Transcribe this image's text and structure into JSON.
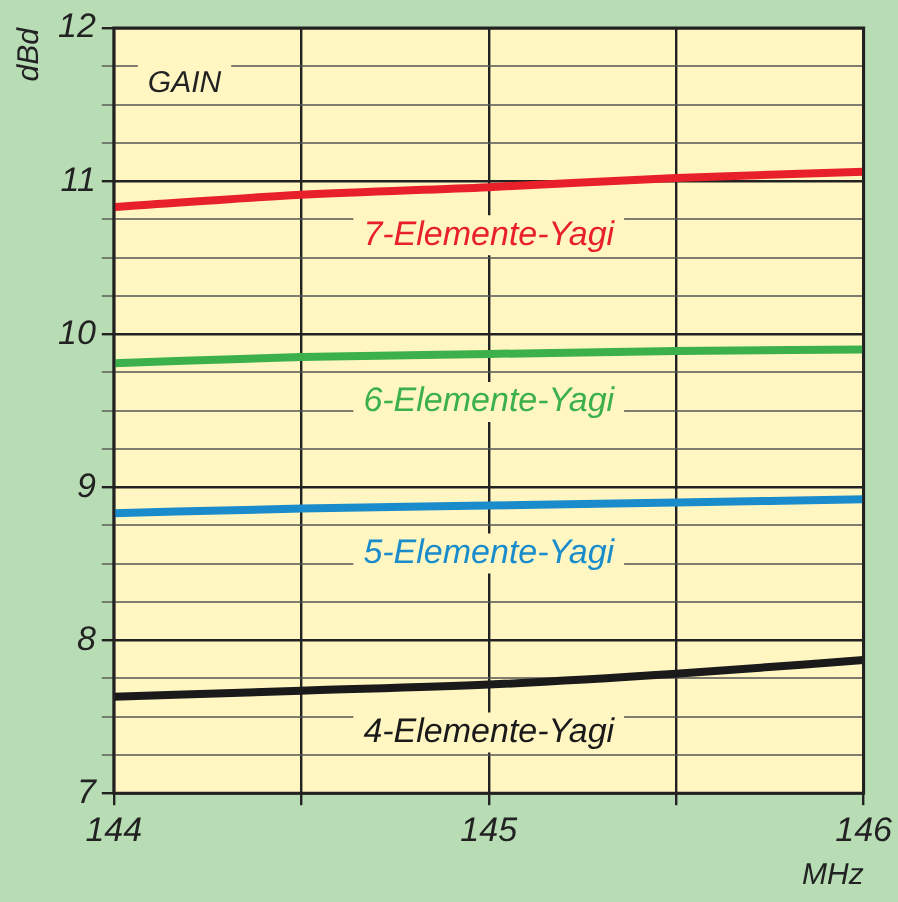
{
  "chart_data": {
    "type": "line",
    "ylabel": "dBd",
    "xlabel": "MHz",
    "annotations": [
      "GAIN"
    ],
    "x": [
      144,
      144.5,
      145,
      145.5,
      146
    ],
    "series": [
      {
        "name": "7-Elemente-Yagi",
        "color": "#e8202a",
        "values": [
          10.83,
          10.91,
          10.96,
          11.02,
          11.06
        ]
      },
      {
        "name": "6-Elemente-Yagi",
        "color": "#3cb04a",
        "values": [
          9.81,
          9.85,
          9.87,
          9.89,
          9.9
        ]
      },
      {
        "name": "5-Elemente-Yagi",
        "color": "#1a8ccc",
        "values": [
          8.83,
          8.86,
          8.88,
          8.9,
          8.92
        ]
      },
      {
        "name": "4-Elemente-Yagi",
        "color": "#1a1a1a",
        "values": [
          7.63,
          7.67,
          7.71,
          7.78,
          7.87
        ]
      }
    ],
    "xlim": [
      144,
      146
    ],
    "xticks": [
      144,
      {
        "value": 144.5,
        "label": null
      },
      145,
      {
        "value": 145.5,
        "label": null
      },
      146
    ],
    "ylim": [
      7,
      12
    ],
    "yticks": [
      7,
      {
        "value": 7.25,
        "label": null
      },
      {
        "value": 7.5,
        "label": null
      },
      {
        "value": 7.75,
        "label": null
      },
      8,
      {
        "value": 8.25,
        "label": null
      },
      {
        "value": 8.5,
        "label": null
      },
      {
        "value": 8.75,
        "label": null
      },
      9,
      {
        "value": 9.25,
        "label": null
      },
      {
        "value": 9.5,
        "label": null
      },
      {
        "value": 9.75,
        "label": null
      },
      10,
      {
        "value": 10.25,
        "label": null
      },
      {
        "value": 10.5,
        "label": null
      },
      {
        "value": 10.75,
        "label": null
      },
      11,
      {
        "value": 11.25,
        "label": null
      },
      {
        "value": 11.5,
        "label": null
      },
      {
        "value": 11.75,
        "label": null
      },
      12
    ],
    "grid": true,
    "legend": false,
    "marker": "none",
    "line_style": "solid"
  }
}
